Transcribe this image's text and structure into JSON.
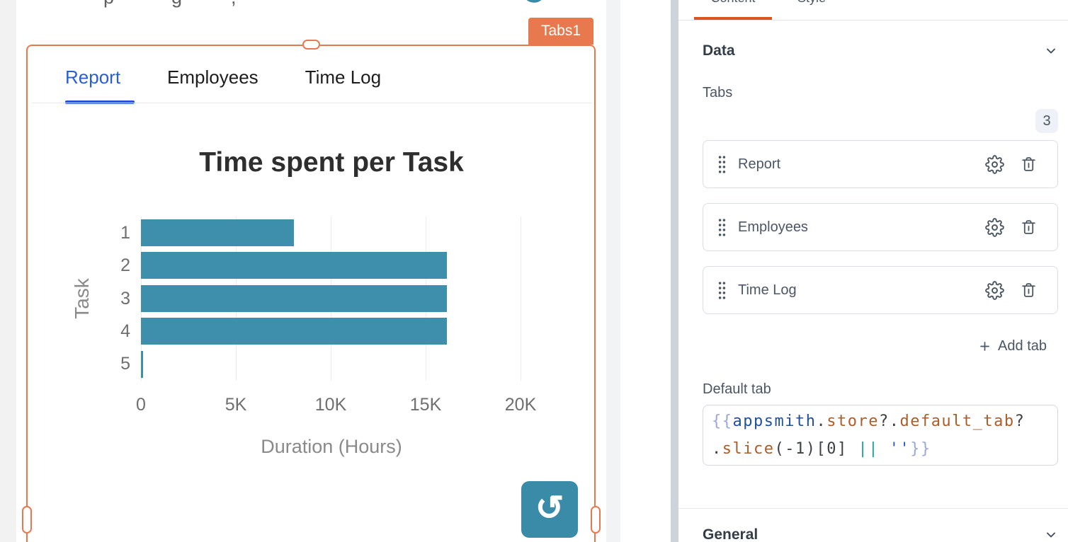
{
  "canvas": {
    "clipped_text_fragments": [
      "p",
      "g",
      ","
    ],
    "widget_badge": "Tabs1",
    "tabs": [
      {
        "label": "Report",
        "active": true
      },
      {
        "label": "Employees",
        "active": false
      },
      {
        "label": "Time Log",
        "active": false
      }
    ]
  },
  "chart_data": {
    "type": "bar",
    "orientation": "horizontal",
    "title": "Time spent per Task",
    "categories": [
      "1",
      "2",
      "3",
      "4",
      "5"
    ],
    "values": [
      8060,
      16120,
      16120,
      16120,
      100
    ],
    "xlabel": "Duration (Hours)",
    "ylabel": "Task",
    "xlim": [
      0,
      20000
    ],
    "xticks": [
      "0",
      "5K",
      "10K",
      "15K",
      "20K"
    ],
    "grid": true,
    "legend": false,
    "bar_color": "#3E8FAB"
  },
  "colors": {
    "selection_orange": "#E8794E",
    "pane_tab_underline_orange": "#D9571E",
    "active_tab_blue": "#2456D5",
    "bar_teal": "#3E8FAB",
    "refresh_button_teal": "#3A8BA8"
  },
  "property_pane": {
    "tabs": [
      {
        "label": "Content",
        "active": true
      },
      {
        "label": "Style",
        "active": false
      }
    ],
    "data_section": {
      "title": "Data"
    },
    "tabs_field": {
      "label": "Tabs",
      "count": "3",
      "items": [
        {
          "label": "Report"
        },
        {
          "label": "Employees"
        },
        {
          "label": "Time Log"
        }
      ],
      "add_button_label": "Add tab"
    },
    "default_tab": {
      "label": "Default tab",
      "value": "{{appsmith.store?.default_tab?.slice(-1)[0] || ''}}",
      "lines": [
        [
          {
            "t": "{{",
            "c": "brace"
          },
          {
            "t": "appsmith",
            "c": "def"
          },
          {
            "t": ".",
            "c": "plain"
          },
          {
            "t": "store",
            "c": "prop"
          },
          {
            "t": "?.",
            "c": "plain"
          },
          {
            "t": "default_tab",
            "c": "prop"
          },
          {
            "t": "?",
            "c": "plain"
          }
        ],
        [
          {
            "t": ".",
            "c": "plain"
          },
          {
            "t": "slice",
            "c": "prop"
          },
          {
            "t": "(-1)[0]",
            "c": "plain"
          },
          {
            "t": " ",
            "c": "plain"
          },
          {
            "t": "||",
            "c": "op"
          },
          {
            "t": " ",
            "c": "plain"
          },
          {
            "t": "''",
            "c": "str"
          },
          {
            "t": "}}",
            "c": "brace"
          }
        ]
      ]
    },
    "general_section": {
      "title": "General"
    }
  }
}
